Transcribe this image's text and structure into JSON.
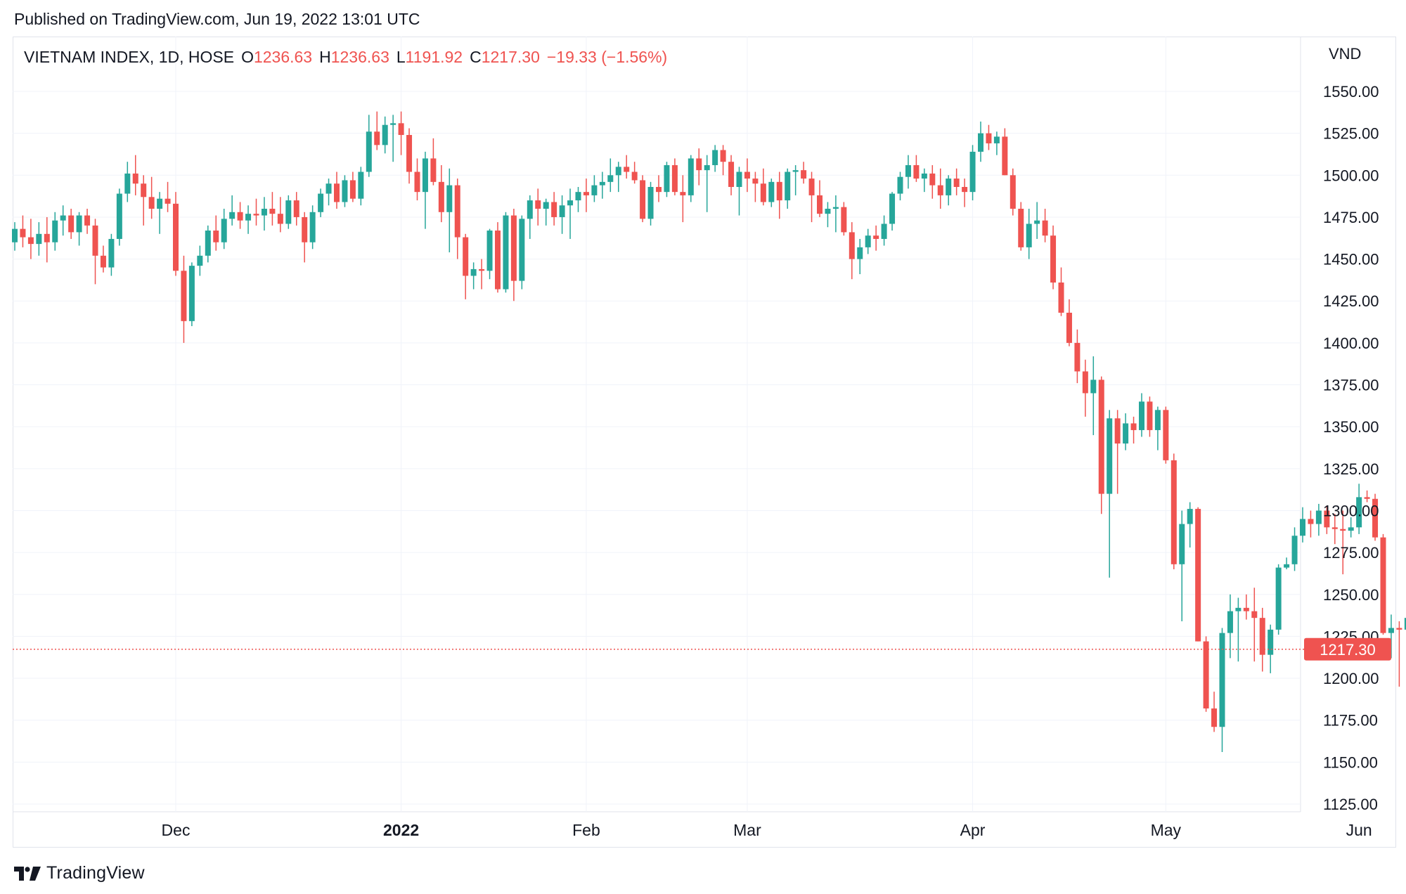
{
  "header": {
    "published": "Published on TradingView.com, Jun 19, 2022 13:01 UTC"
  },
  "legend": {
    "symbol": "VIETNAM INDEX, 1D, HOSE",
    "open_label": "O",
    "open": "1236.63",
    "high_label": "H",
    "high": "1236.63",
    "low_label": "L",
    "low": "1191.92",
    "close_label": "C",
    "close": "1217.30",
    "change": "−19.33 (−1.56%)"
  },
  "footer": {
    "brand": "TradingView"
  },
  "colors": {
    "up": "#26a69a",
    "down": "#ef5350",
    "grid": "#f0f3fa",
    "text": "#131722"
  },
  "chart_data": {
    "type": "candlestick",
    "currency": "VND",
    "ylim": [
      1115,
      1565
    ],
    "y_ticks": [
      "1550.00",
      "1525.00",
      "1500.00",
      "1475.00",
      "1450.00",
      "1425.00",
      "1400.00",
      "1375.00",
      "1350.00",
      "1325.00",
      "1300.00",
      "1275.00",
      "1250.00",
      "1225.00",
      "1200.00",
      "1175.00",
      "1150.00",
      "1125.00"
    ],
    "x_ticks": [
      {
        "label": "Dec",
        "index": 20,
        "bold": false
      },
      {
        "label": "2022",
        "index": 48,
        "bold": true
      },
      {
        "label": "Feb",
        "index": 71,
        "bold": false
      },
      {
        "label": "Mar",
        "index": 91,
        "bold": false
      },
      {
        "label": "Apr",
        "index": 119,
        "bold": false
      },
      {
        "label": "May",
        "index": 143,
        "bold": false
      },
      {
        "label": "Jun",
        "index": 167,
        "bold": false
      },
      {
        "label": "Ju",
        "index": 194,
        "bold": false
      }
    ],
    "last_price": "1217.30",
    "last_value": 1217.3,
    "candles": [
      [
        1460,
        1472,
        1455,
        1468
      ],
      [
        1468,
        1476,
        1457,
        1463
      ],
      [
        1463,
        1474,
        1450,
        1459
      ],
      [
        1459,
        1472,
        1452,
        1465
      ],
      [
        1465,
        1475,
        1448,
        1460
      ],
      [
        1460,
        1478,
        1455,
        1473
      ],
      [
        1473,
        1482,
        1464,
        1476
      ],
      [
        1476,
        1480,
        1462,
        1466
      ],
      [
        1466,
        1478,
        1458,
        1476
      ],
      [
        1476,
        1480,
        1465,
        1470
      ],
      [
        1470,
        1474,
        1435,
        1452
      ],
      [
        1452,
        1458,
        1442,
        1445
      ],
      [
        1445,
        1465,
        1440,
        1462
      ],
      [
        1462,
        1492,
        1458,
        1489
      ],
      [
        1489,
        1508,
        1484,
        1501
      ],
      [
        1501,
        1512,
        1488,
        1495
      ],
      [
        1495,
        1500,
        1470,
        1487
      ],
      [
        1487,
        1499,
        1474,
        1480
      ],
      [
        1480,
        1490,
        1465,
        1486
      ],
      [
        1486,
        1496,
        1478,
        1483
      ],
      [
        1483,
        1490,
        1440,
        1443
      ],
      [
        1443,
        1452,
        1400,
        1413
      ],
      [
        1413,
        1448,
        1410,
        1446
      ],
      [
        1446,
        1458,
        1440,
        1452
      ],
      [
        1452,
        1470,
        1448,
        1467
      ],
      [
        1467,
        1476,
        1455,
        1460
      ],
      [
        1460,
        1480,
        1456,
        1474
      ],
      [
        1474,
        1488,
        1470,
        1478
      ],
      [
        1478,
        1484,
        1468,
        1473
      ],
      [
        1473,
        1482,
        1465,
        1477
      ],
      [
        1477,
        1486,
        1470,
        1476
      ],
      [
        1476,
        1487,
        1467,
        1480
      ],
      [
        1480,
        1490,
        1470,
        1477
      ],
      [
        1477,
        1487,
        1466,
        1471
      ],
      [
        1471,
        1488,
        1468,
        1485
      ],
      [
        1485,
        1490,
        1470,
        1475
      ],
      [
        1475,
        1478,
        1448,
        1460
      ],
      [
        1460,
        1482,
        1456,
        1478
      ],
      [
        1478,
        1492,
        1475,
        1489
      ],
      [
        1489,
        1498,
        1482,
        1495
      ],
      [
        1495,
        1502,
        1480,
        1484
      ],
      [
        1484,
        1500,
        1481,
        1497
      ],
      [
        1497,
        1502,
        1484,
        1486
      ],
      [
        1486,
        1505,
        1482,
        1502
      ],
      [
        1502,
        1536,
        1499,
        1526
      ],
      [
        1526,
        1538,
        1515,
        1518
      ],
      [
        1518,
        1535,
        1513,
        1530
      ],
      [
        1530,
        1536,
        1508,
        1531
      ],
      [
        1531,
        1538,
        1512,
        1524
      ],
      [
        1524,
        1528,
        1495,
        1502
      ],
      [
        1502,
        1510,
        1485,
        1490
      ],
      [
        1490,
        1514,
        1468,
        1510
      ],
      [
        1510,
        1522,
        1494,
        1496
      ],
      [
        1496,
        1506,
        1472,
        1478
      ],
      [
        1478,
        1504,
        1454,
        1494
      ],
      [
        1494,
        1498,
        1450,
        1463
      ],
      [
        1463,
        1465,
        1426,
        1440
      ],
      [
        1440,
        1448,
        1432,
        1444
      ],
      [
        1444,
        1450,
        1432,
        1443
      ],
      [
        1443,
        1468,
        1438,
        1467
      ],
      [
        1467,
        1472,
        1430,
        1432
      ],
      [
        1432,
        1478,
        1430,
        1476
      ],
      [
        1476,
        1480,
        1425,
        1437
      ],
      [
        1437,
        1476,
        1432,
        1474
      ],
      [
        1474,
        1488,
        1462,
        1485
      ],
      [
        1485,
        1492,
        1470,
        1480
      ],
      [
        1480,
        1486,
        1470,
        1484
      ],
      [
        1484,
        1490,
        1470,
        1475
      ],
      [
        1475,
        1488,
        1465,
        1482
      ],
      [
        1482,
        1492,
        1462,
        1485
      ],
      [
        1485,
        1493,
        1478,
        1490
      ],
      [
        1490,
        1498,
        1478,
        1488
      ],
      [
        1488,
        1500,
        1484,
        1494
      ],
      [
        1494,
        1502,
        1486,
        1496
      ],
      [
        1496,
        1510,
        1490,
        1500
      ],
      [
        1500,
        1508,
        1490,
        1505
      ],
      [
        1505,
        1512,
        1498,
        1502
      ],
      [
        1502,
        1508,
        1495,
        1497
      ],
      [
        1497,
        1500,
        1472,
        1474
      ],
      [
        1474,
        1496,
        1470,
        1493
      ],
      [
        1493,
        1500,
        1484,
        1490
      ],
      [
        1490,
        1508,
        1487,
        1506
      ],
      [
        1506,
        1510,
        1488,
        1490
      ],
      [
        1490,
        1500,
        1472,
        1488
      ],
      [
        1488,
        1512,
        1484,
        1510
      ],
      [
        1510,
        1516,
        1494,
        1503
      ],
      [
        1503,
        1512,
        1478,
        1506
      ],
      [
        1506,
        1518,
        1502,
        1515
      ],
      [
        1515,
        1518,
        1500,
        1508
      ],
      [
        1508,
        1512,
        1488,
        1493
      ],
      [
        1493,
        1505,
        1476,
        1502
      ],
      [
        1502,
        1510,
        1490,
        1498
      ],
      [
        1498,
        1502,
        1484,
        1495
      ],
      [
        1495,
        1504,
        1482,
        1484
      ],
      [
        1484,
        1498,
        1481,
        1496
      ],
      [
        1496,
        1502,
        1474,
        1485
      ],
      [
        1485,
        1504,
        1480,
        1502
      ],
      [
        1502,
        1506,
        1488,
        1503
      ],
      [
        1503,
        1508,
        1495,
        1498
      ],
      [
        1498,
        1502,
        1472,
        1488
      ],
      [
        1488,
        1497,
        1475,
        1477
      ],
      [
        1477,
        1484,
        1469,
        1480
      ],
      [
        1480,
        1488,
        1466,
        1481
      ],
      [
        1481,
        1484,
        1464,
        1466
      ],
      [
        1466,
        1472,
        1438,
        1450
      ],
      [
        1450,
        1462,
        1441,
        1457
      ],
      [
        1457,
        1468,
        1453,
        1464
      ],
      [
        1464,
        1470,
        1455,
        1462
      ],
      [
        1462,
        1476,
        1458,
        1471
      ],
      [
        1471,
        1490,
        1467,
        1489
      ],
      [
        1489,
        1502,
        1485,
        1499
      ],
      [
        1499,
        1512,
        1492,
        1506
      ],
      [
        1506,
        1512,
        1496,
        1498
      ],
      [
        1498,
        1504,
        1490,
        1501
      ],
      [
        1501,
        1506,
        1486,
        1494
      ],
      [
        1494,
        1504,
        1480,
        1488
      ],
      [
        1488,
        1500,
        1482,
        1498
      ],
      [
        1498,
        1504,
        1488,
        1493
      ],
      [
        1493,
        1498,
        1481,
        1490
      ],
      [
        1490,
        1518,
        1485,
        1514
      ],
      [
        1514,
        1532,
        1508,
        1525
      ],
      [
        1525,
        1530,
        1515,
        1519
      ],
      [
        1519,
        1526,
        1512,
        1523
      ],
      [
        1523,
        1528,
        1500,
        1500
      ],
      [
        1500,
        1504,
        1476,
        1480
      ],
      [
        1480,
        1484,
        1455,
        1457
      ],
      [
        1457,
        1480,
        1450,
        1471
      ],
      [
        1471,
        1484,
        1462,
        1473
      ],
      [
        1473,
        1480,
        1460,
        1464
      ],
      [
        1464,
        1470,
        1432,
        1436
      ],
      [
        1436,
        1445,
        1416,
        1418
      ],
      [
        1418,
        1426,
        1398,
        1400
      ],
      [
        1400,
        1408,
        1376,
        1383
      ],
      [
        1383,
        1390,
        1356,
        1370
      ],
      [
        1370,
        1392,
        1345,
        1378
      ],
      [
        1378,
        1380,
        1298,
        1310
      ],
      [
        1310,
        1360,
        1260,
        1355
      ],
      [
        1355,
        1360,
        1310,
        1340
      ],
      [
        1340,
        1358,
        1336,
        1352
      ],
      [
        1352,
        1356,
        1340,
        1348
      ],
      [
        1348,
        1370,
        1344,
        1365
      ],
      [
        1365,
        1368,
        1344,
        1348
      ],
      [
        1348,
        1362,
        1336,
        1360
      ],
      [
        1360,
        1362,
        1328,
        1330
      ],
      [
        1330,
        1334,
        1265,
        1268
      ],
      [
        1268,
        1300,
        1234,
        1292
      ],
      [
        1292,
        1305,
        1278,
        1301
      ],
      [
        1301,
        1302,
        1222,
        1222
      ],
      [
        1222,
        1225,
        1180,
        1182
      ],
      [
        1182,
        1192,
        1168,
        1171
      ],
      [
        1171,
        1230,
        1156,
        1227
      ],
      [
        1227,
        1250,
        1212,
        1240
      ],
      [
        1240,
        1248,
        1210,
        1242
      ],
      [
        1242,
        1250,
        1235,
        1240
      ],
      [
        1240,
        1254,
        1210,
        1236
      ],
      [
        1236,
        1242,
        1204,
        1214
      ],
      [
        1214,
        1232,
        1203,
        1229
      ],
      [
        1229,
        1268,
        1226,
        1266
      ],
      [
        1266,
        1272,
        1265,
        1268
      ],
      [
        1268,
        1290,
        1264,
        1285
      ],
      [
        1285,
        1302,
        1281,
        1295
      ],
      [
        1295,
        1300,
        1284,
        1292
      ],
      [
        1292,
        1304,
        1285,
        1300
      ],
      [
        1300,
        1303,
        1286,
        1290
      ],
      [
        1290,
        1298,
        1280,
        1289
      ],
      [
        1289,
        1300,
        1262,
        1288
      ],
      [
        1288,
        1296,
        1284,
        1290
      ],
      [
        1290,
        1316,
        1286,
        1308
      ],
      [
        1308,
        1312,
        1305,
        1307
      ],
      [
        1307,
        1310,
        1282,
        1284
      ],
      [
        1284,
        1286,
        1226,
        1227
      ],
      [
        1227,
        1238,
        1212,
        1230
      ],
      [
        1230,
        1234,
        1195,
        1229
      ],
      [
        1229,
        1245,
        1218,
        1236
      ],
      [
        1236.63,
        1236.63,
        1191.92,
        1217.3
      ]
    ]
  }
}
